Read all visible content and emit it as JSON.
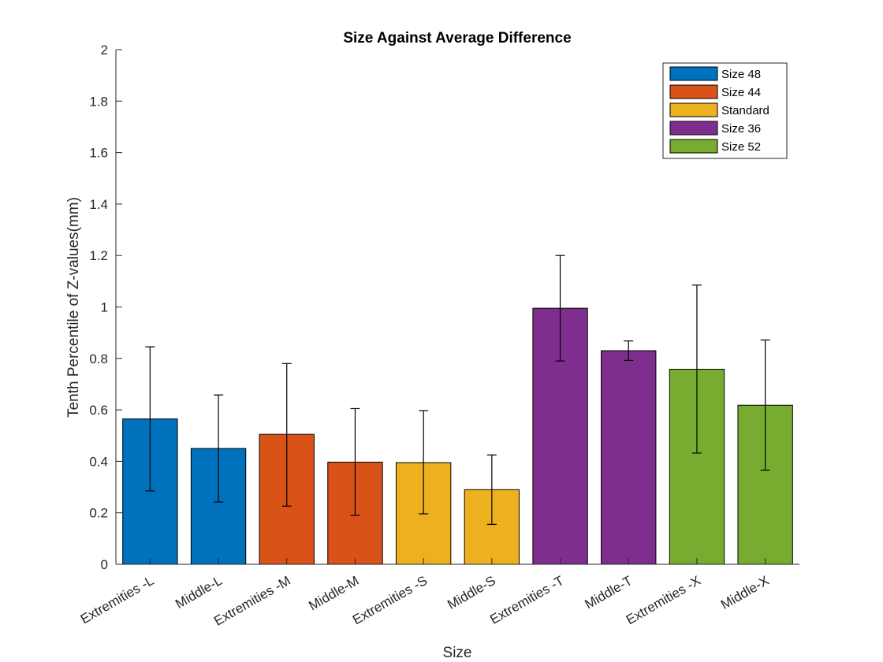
{
  "chart_data": {
    "type": "bar",
    "title": "Size Against Average Difference",
    "xlabel": "Size",
    "ylabel": "Tenth Percentile of Z-values(mm)",
    "ylim": [
      0,
      2
    ],
    "yticks": [
      0,
      0.2,
      0.4,
      0.6,
      0.8,
      1,
      1.2,
      1.4,
      1.6,
      1.8,
      2
    ],
    "ytick_labels": [
      "0",
      "0.2",
      "0.4",
      "0.6",
      "0.8",
      "1",
      "1.2",
      "1.4",
      "1.6",
      "1.8",
      "2"
    ],
    "grid": false,
    "legend_position": "top-right",
    "categories": [
      "Extremities -L",
      "Middle-L",
      "Extremities -M",
      "Middle-M",
      "Extremities -S",
      "Middle-S",
      "Extremities -T",
      "Middle-T",
      "Extremities -X",
      "Middle-X"
    ],
    "values": [
      0.565,
      0.45,
      0.505,
      0.397,
      0.395,
      0.29,
      0.995,
      0.83,
      0.758,
      0.618
    ],
    "error_lower": [
      0.285,
      0.242,
      0.226,
      0.19,
      0.196,
      0.155,
      0.79,
      0.792,
      0.432,
      0.366
    ],
    "error_upper": [
      0.845,
      0.658,
      0.78,
      0.605,
      0.597,
      0.425,
      1.2,
      0.868,
      1.085,
      0.872
    ],
    "bar_series_index": [
      0,
      0,
      1,
      1,
      2,
      2,
      3,
      3,
      4,
      4
    ],
    "series": [
      {
        "name": "Size 48",
        "color": "#0072BD"
      },
      {
        "name": "Size 44",
        "color": "#D95319"
      },
      {
        "name": "Standard",
        "color": "#EDB120"
      },
      {
        "name": "Size 36",
        "color": "#7E2F8E"
      },
      {
        "name": "Size 52",
        "color": "#77AC30"
      }
    ]
  }
}
